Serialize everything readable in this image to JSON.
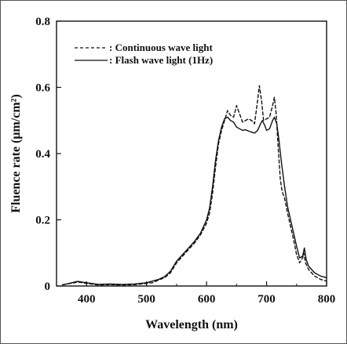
{
  "chart_data": {
    "type": "line",
    "xlabel": "Wavelength (nm)",
    "ylabel": "Fluence rate (μm/cm²)",
    "xlim": [
      350,
      800
    ],
    "ylim": [
      0,
      0.8
    ],
    "x_ticks": [
      "400",
      "500",
      "600",
      "700",
      "800"
    ],
    "y_ticks": [
      "0",
      "0.2",
      "0.4",
      "0.6",
      "0.8"
    ],
    "x_tick_values": [
      400,
      500,
      600,
      700,
      800
    ],
    "y_tick_values": [
      0,
      0.2,
      0.4,
      0.6,
      0.8
    ],
    "legend_position": "top-left",
    "series": [
      {
        "name": ": Continuous wave light",
        "style": "dashed",
        "color": "#111111",
        "points": [
          [
            360,
            0.004
          ],
          [
            380,
            0.01
          ],
          [
            385,
            0.012
          ],
          [
            400,
            0.008
          ],
          [
            420,
            0.003
          ],
          [
            440,
            0.004
          ],
          [
            460,
            0.003
          ],
          [
            480,
            0.004
          ],
          [
            500,
            0.008
          ],
          [
            510,
            0.01
          ],
          [
            520,
            0.018
          ],
          [
            530,
            0.025
          ],
          [
            540,
            0.04
          ],
          [
            550,
            0.07
          ],
          [
            560,
            0.09
          ],
          [
            570,
            0.11
          ],
          [
            580,
            0.13
          ],
          [
            590,
            0.155
          ],
          [
            600,
            0.19
          ],
          [
            605,
            0.22
          ],
          [
            610,
            0.28
          ],
          [
            615,
            0.36
          ],
          [
            620,
            0.43
          ],
          [
            625,
            0.47
          ],
          [
            630,
            0.5
          ],
          [
            635,
            0.53
          ],
          [
            640,
            0.515
          ],
          [
            645,
            0.51
          ],
          [
            648,
            0.53
          ],
          [
            650,
            0.545
          ],
          [
            655,
            0.52
          ],
          [
            660,
            0.495
          ],
          [
            665,
            0.5
          ],
          [
            670,
            0.505
          ],
          [
            675,
            0.5
          ],
          [
            680,
            0.49
          ],
          [
            685,
            0.56
          ],
          [
            688,
            0.605
          ],
          [
            692,
            0.555
          ],
          [
            695,
            0.5
          ],
          [
            700,
            0.505
          ],
          [
            705,
            0.51
          ],
          [
            710,
            0.545
          ],
          [
            713,
            0.57
          ],
          [
            716,
            0.52
          ],
          [
            720,
            0.4
          ],
          [
            723,
            0.32
          ],
          [
            726,
            0.285
          ],
          [
            730,
            0.265
          ],
          [
            735,
            0.22
          ],
          [
            740,
            0.18
          ],
          [
            745,
            0.14
          ],
          [
            750,
            0.095
          ],
          [
            755,
            0.07
          ],
          [
            760,
            0.085
          ],
          [
            762,
            0.1
          ],
          [
            765,
            0.07
          ],
          [
            770,
            0.05
          ],
          [
            780,
            0.03
          ],
          [
            790,
            0.02
          ],
          [
            800,
            0.015
          ]
        ]
      },
      {
        "name": ": Flash wave light (1Hz)",
        "style": "solid",
        "color": "#111111",
        "points": [
          [
            360,
            0.003
          ],
          [
            380,
            0.012
          ],
          [
            385,
            0.014
          ],
          [
            400,
            0.01
          ],
          [
            420,
            0.005
          ],
          [
            440,
            0.006
          ],
          [
            460,
            0.005
          ],
          [
            480,
            0.006
          ],
          [
            500,
            0.01
          ],
          [
            510,
            0.015
          ],
          [
            520,
            0.02
          ],
          [
            530,
            0.028
          ],
          [
            540,
            0.045
          ],
          [
            550,
            0.075
          ],
          [
            560,
            0.095
          ],
          [
            570,
            0.115
          ],
          [
            580,
            0.135
          ],
          [
            590,
            0.16
          ],
          [
            600,
            0.2
          ],
          [
            605,
            0.235
          ],
          [
            610,
            0.3
          ],
          [
            615,
            0.38
          ],
          [
            620,
            0.44
          ],
          [
            625,
            0.48
          ],
          [
            630,
            0.505
          ],
          [
            635,
            0.51
          ],
          [
            640,
            0.5
          ],
          [
            645,
            0.495
          ],
          [
            650,
            0.48
          ],
          [
            655,
            0.475
          ],
          [
            660,
            0.47
          ],
          [
            665,
            0.472
          ],
          [
            670,
            0.468
          ],
          [
            675,
            0.465
          ],
          [
            680,
            0.462
          ],
          [
            685,
            0.47
          ],
          [
            690,
            0.49
          ],
          [
            693,
            0.5
          ],
          [
            697,
            0.485
          ],
          [
            700,
            0.47
          ],
          [
            705,
            0.475
          ],
          [
            710,
            0.5
          ],
          [
            713,
            0.51
          ],
          [
            717,
            0.49
          ],
          [
            720,
            0.45
          ],
          [
            725,
            0.37
          ],
          [
            730,
            0.3
          ],
          [
            735,
            0.24
          ],
          [
            740,
            0.2
          ],
          [
            745,
            0.16
          ],
          [
            750,
            0.12
          ],
          [
            755,
            0.085
          ],
          [
            760,
            0.09
          ],
          [
            763,
            0.115
          ],
          [
            766,
            0.08
          ],
          [
            770,
            0.06
          ],
          [
            780,
            0.04
          ],
          [
            790,
            0.03
          ],
          [
            800,
            0.025
          ]
        ]
      }
    ]
  }
}
